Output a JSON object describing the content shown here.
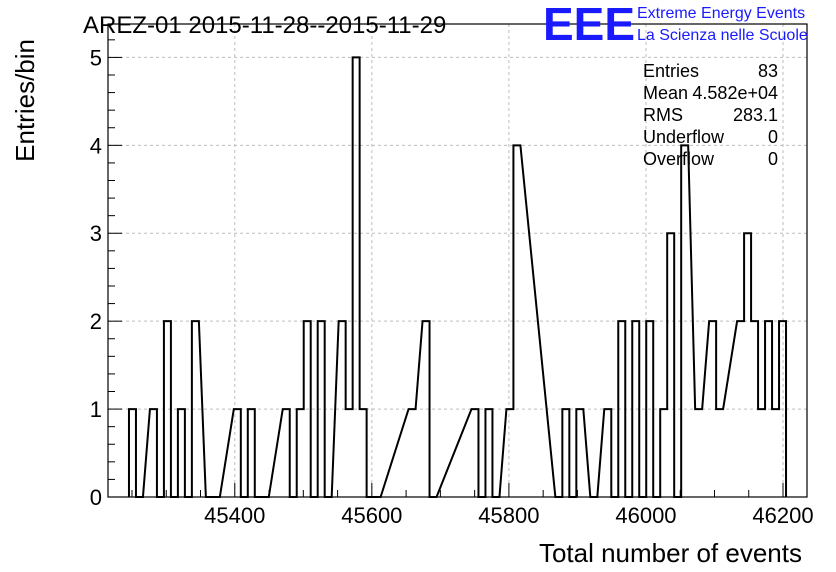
{
  "header": {
    "title": "AREZ-01 2015-11-28--2015-11-29"
  },
  "logo": {
    "mark": "EEE",
    "line1": "Extreme Energy Events",
    "line2": "La Scienza nelle Scuole",
    "color": "#1a1aff"
  },
  "stats": [
    {
      "label": "Entries",
      "value": "83"
    },
    {
      "label": "Mean",
      "value": "4.582e+04"
    },
    {
      "label": "RMS",
      "value": "283.1"
    },
    {
      "label": "Underflow",
      "value": "0"
    },
    {
      "label": "Overflow",
      "value": "0"
    }
  ],
  "chart_data": {
    "type": "bar",
    "xlabel": "Total number of events",
    "ylabel": "Entries/bin",
    "xlim": [
      45215,
      46235
    ],
    "ylim": [
      0,
      5.38
    ],
    "grid": true,
    "bin_width": 10.2,
    "x_ticks": [
      45400,
      45600,
      45800,
      46000,
      46200
    ],
    "y_ticks": [
      0,
      1,
      2,
      3,
      4,
      5
    ],
    "bin_edges": [
      45245.6,
      45255.8,
      45276.2,
      45286.4,
      45296.6,
      45306.8,
      45317.0,
      45327.2,
      45337.4,
      45357.8,
      45368.0,
      45398.6,
      45408.8,
      45419.0,
      45429.2,
      45439.4,
      45470.0,
      45480.2,
      45490.4,
      45500.6,
      45510.8,
      45521.0,
      45531.2,
      45551.6,
      45561.8,
      45572.0,
      45582.2,
      45592.4,
      45602.6,
      45653.6,
      45674.0,
      45684.2,
      45745.4,
      45755.6,
      45765.8,
      45776.0,
      45796.4,
      45806.6,
      45867.8,
      45878.0,
      45888.2,
      45898.4,
      45918.8,
      45939.2,
      45949.4,
      45959.6,
      45969.8,
      45980.0,
      45990.2,
      46000.4,
      46010.6,
      46020.8,
      46031.0,
      46041.2,
      46051.4,
      46071.8,
      46092.2,
      46102.4,
      46133.0,
      46143.2,
      46153.4,
      46163.6,
      46173.8,
      46184.0,
      46194.2
    ],
    "bin_counts": [
      1,
      0,
      1,
      0,
      2,
      0,
      1,
      0,
      2,
      0,
      0,
      1,
      0,
      1,
      0,
      0,
      1,
      0,
      1,
      2,
      0,
      2,
      0,
      2,
      1,
      5,
      1,
      0,
      0,
      1,
      2,
      0,
      1,
      0,
      1,
      0,
      1,
      4,
      0,
      1,
      0,
      1,
      0,
      1,
      0,
      2,
      0,
      2,
      0,
      2,
      0,
      1,
      3,
      0,
      4,
      1,
      2,
      1,
      2,
      3,
      2,
      1,
      2,
      1,
      2
    ]
  }
}
